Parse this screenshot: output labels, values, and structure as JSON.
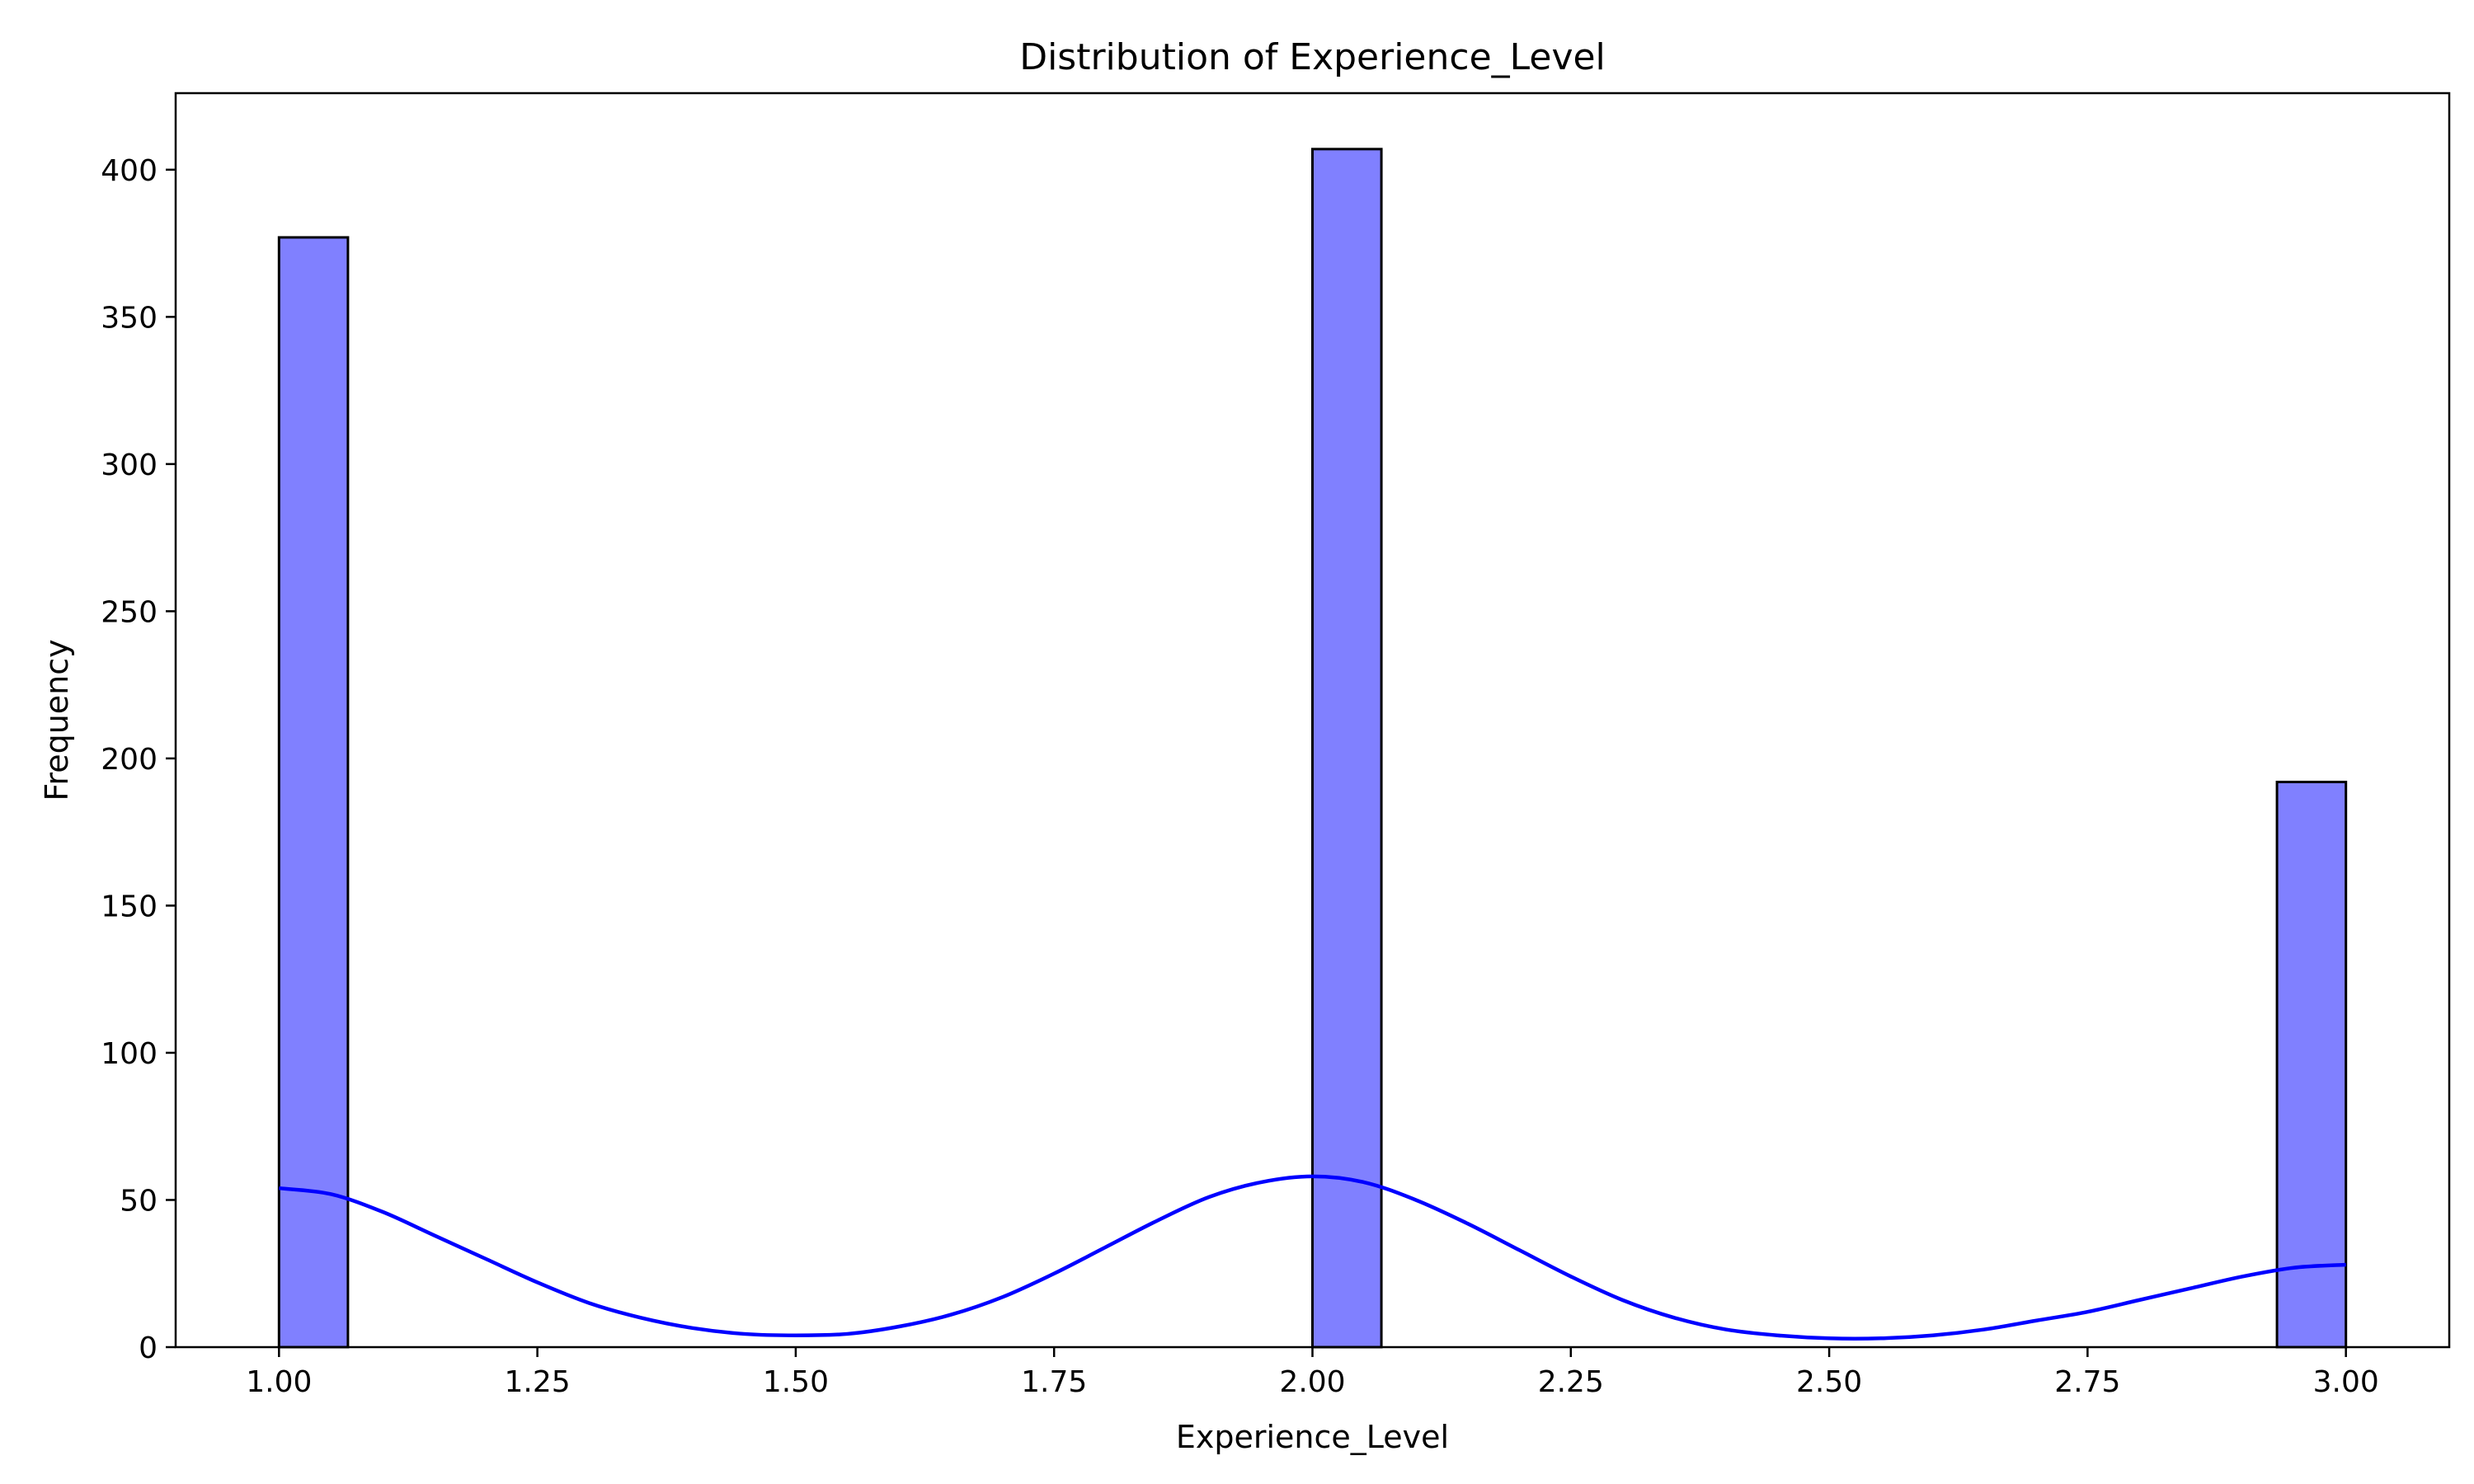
{
  "chart_data": {
    "type": "bar",
    "title": "Distribution of Experience_Level",
    "xlabel": "Experience_Level",
    "ylabel": "Frequency",
    "xlim": [
      0.9,
      3.1
    ],
    "ylim": [
      0,
      426
    ],
    "x_ticks": [
      "1.00",
      "1.25",
      "1.50",
      "1.75",
      "2.00",
      "2.25",
      "2.50",
      "2.75",
      "3.00"
    ],
    "y_ticks": [
      "0",
      "50",
      "100",
      "150",
      "200",
      "250",
      "300",
      "350",
      "400"
    ],
    "bins": [
      {
        "x0": 1.0,
        "x1": 1.0667,
        "value": 377
      },
      {
        "x0": 2.0,
        "x1": 2.0667,
        "value": 407
      },
      {
        "x0": 2.9333,
        "x1": 3.0,
        "value": 192
      }
    ],
    "kde": {
      "x": [
        1.0,
        1.05,
        1.1,
        1.15,
        1.2,
        1.25,
        1.3,
        1.35,
        1.4,
        1.45,
        1.5,
        1.55,
        1.6,
        1.65,
        1.7,
        1.75,
        1.8,
        1.85,
        1.9,
        1.95,
        2.0,
        2.05,
        2.1,
        2.15,
        2.2,
        2.25,
        2.3,
        2.35,
        2.4,
        2.45,
        2.5,
        2.55,
        2.6,
        2.65,
        2.7,
        2.75,
        2.8,
        2.85,
        2.9,
        2.95,
        3.0
      ],
      "y": [
        54,
        52,
        46,
        38,
        30,
        22,
        15,
        10,
        6.5,
        4.5,
        4,
        4.5,
        7,
        11,
        17,
        25,
        34,
        43,
        51,
        56,
        58,
        56,
        50,
        42,
        33,
        24,
        16,
        10,
        6,
        4,
        3,
        3,
        4,
        6,
        9,
        12,
        16,
        20,
        24,
        27,
        28
      ]
    },
    "colors": {
      "bar_fill": "#8080ff",
      "bar_edge": "#000000",
      "kde_line": "#0000ff"
    },
    "grid": false,
    "legend": "none"
  }
}
